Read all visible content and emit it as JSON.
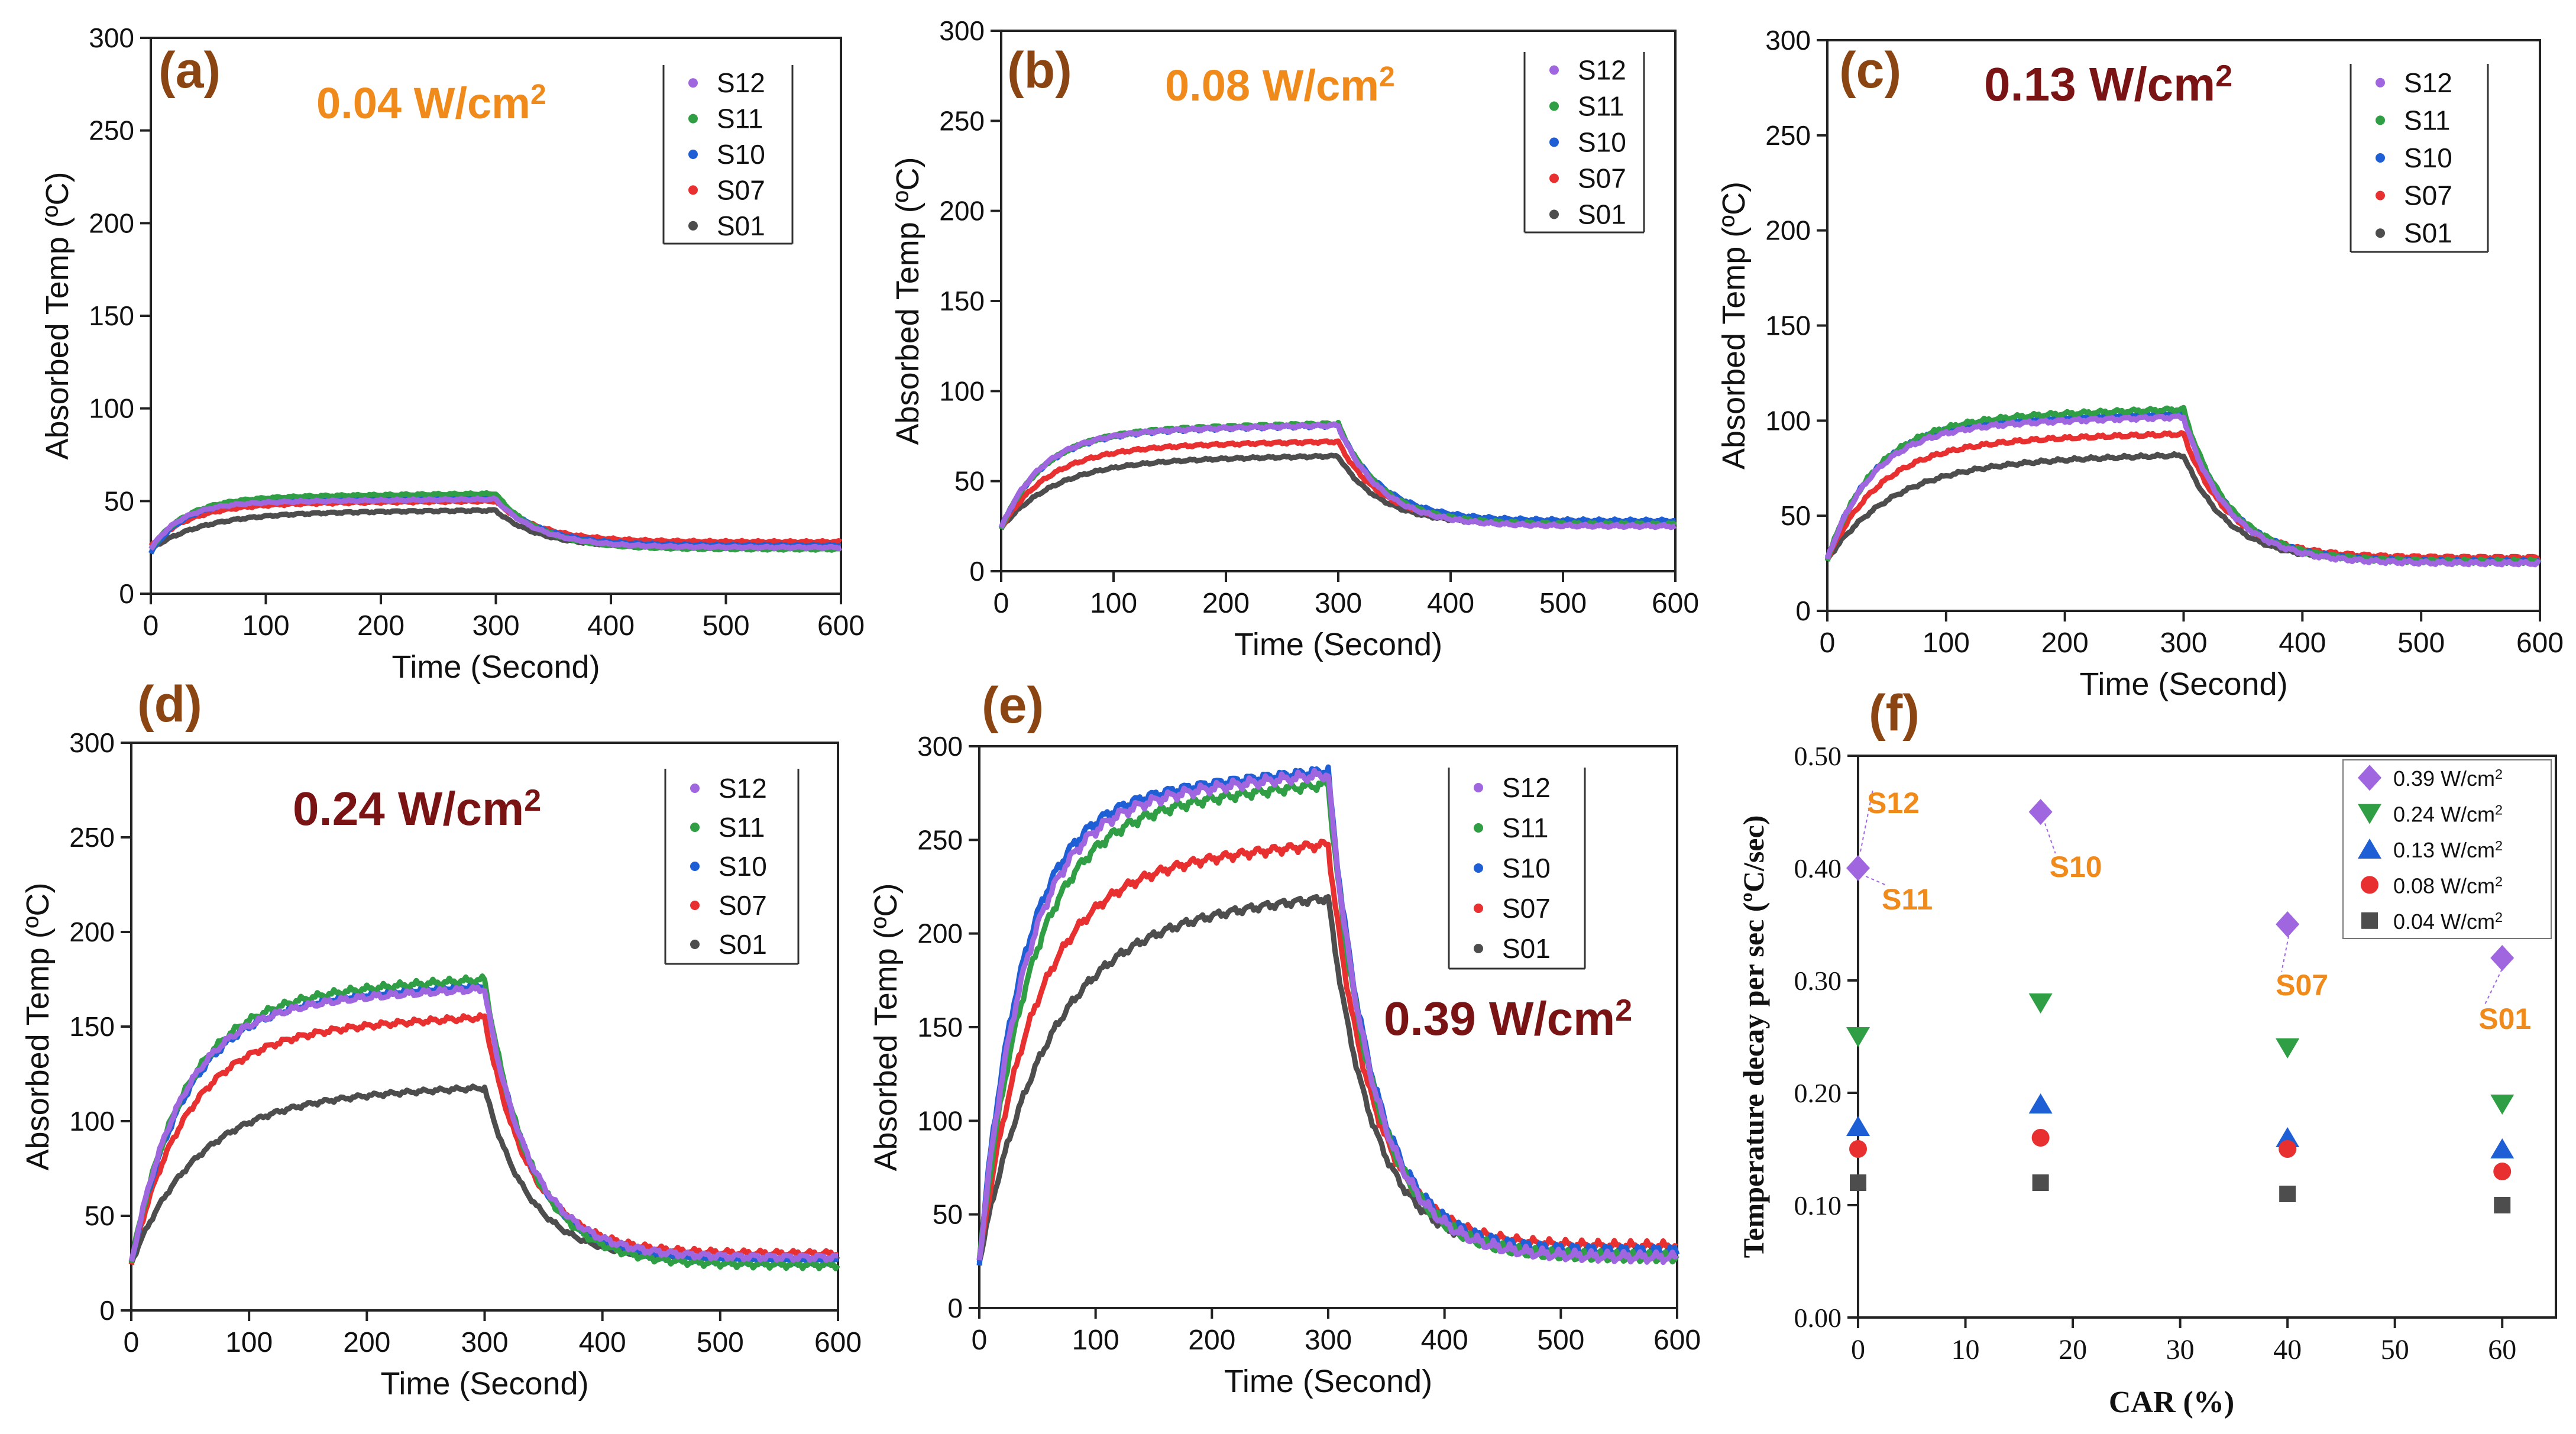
{
  "colors": {
    "S12": "#a066e0",
    "S11": "#2f9e44",
    "S10": "#1f5fd6",
    "S07": "#e83030",
    "S01": "#4d4d4d",
    "label_brown": "#8b4513",
    "orange": "#f08a1a",
    "darkred": "#7a1414",
    "axis": "#222222"
  },
  "chart_data": [
    {
      "id": "a",
      "type": "line",
      "panel_label": "(a)",
      "title": "0.04 W/cm²",
      "title_color": "orange",
      "xlabel": "Time (Second)",
      "ylabel": "Absorbed Temp (ºC)",
      "xlim": [
        0,
        600
      ],
      "ylim": [
        0,
        300
      ],
      "xticks": [
        "0",
        "100",
        "200",
        "300",
        "400",
        "500",
        "600"
      ],
      "yticks": [
        "0",
        "50",
        "100",
        "150",
        "200",
        "250",
        "300"
      ],
      "legend": [
        "S12",
        "S11",
        "S10",
        "S07",
        "S01"
      ],
      "series": [
        {
          "name": "S12",
          "start": 24,
          "plateau": 51,
          "end": 25,
          "tau": 26
        },
        {
          "name": "S11",
          "start": 24,
          "plateau": 54,
          "end": 24,
          "tau": 30
        },
        {
          "name": "S10",
          "start": 22,
          "plateau": 52,
          "end": 26,
          "tau": 28
        },
        {
          "name": "S07",
          "start": 26,
          "plateau": 50,
          "end": 28,
          "tau": 34
        },
        {
          "name": "S01",
          "start": 24,
          "plateau": 45,
          "end": 25,
          "tau": 45
        }
      ]
    },
    {
      "id": "b",
      "type": "line",
      "panel_label": "(b)",
      "title": "0.08 W/cm²",
      "title_color": "orange",
      "xlabel": "Time (Second)",
      "ylabel": "Absorbed Temp (ºC)",
      "xlim": [
        0,
        600
      ],
      "ylim": [
        0,
        300
      ],
      "xticks": [
        "0",
        "100",
        "200",
        "300",
        "400",
        "500",
        "600"
      ],
      "yticks": [
        "0",
        "50",
        "100",
        "150",
        "200",
        "250",
        "300"
      ],
      "legend": [
        "S12",
        "S11",
        "S10",
        "S07",
        "S01"
      ],
      "series": [
        {
          "name": "S12",
          "start": 24,
          "plateau": 81,
          "end": 25,
          "tau": 36
        },
        {
          "name": "S11",
          "start": 24,
          "plateau": 82,
          "end": 26,
          "tau": 38
        },
        {
          "name": "S10",
          "start": 24,
          "plateau": 81,
          "end": 28,
          "tau": 37
        },
        {
          "name": "S07",
          "start": 24,
          "plateau": 72,
          "end": 27,
          "tau": 42
        },
        {
          "name": "S01",
          "start": 24,
          "plateau": 64,
          "end": 26,
          "tau": 48
        }
      ]
    },
    {
      "id": "c",
      "type": "line",
      "panel_label": "(c)",
      "title": "0.13 W/cm²",
      "title_color": "darkred",
      "xlabel": "Time (Second)",
      "ylabel": "Absorbed Temp (ºC)",
      "xlim": [
        0,
        600
      ],
      "ylim": [
        0,
        300
      ],
      "xticks": [
        "0",
        "100",
        "200",
        "300",
        "400",
        "500",
        "600"
      ],
      "yticks": [
        "0",
        "50",
        "100",
        "150",
        "200",
        "250",
        "300"
      ],
      "legend": [
        "S12",
        "S11",
        "S10",
        "S07",
        "S01"
      ],
      "series": [
        {
          "name": "S12",
          "start": 27,
          "plateau": 102,
          "end": 25,
          "tau": 38
        },
        {
          "name": "S11",
          "start": 27,
          "plateau": 106,
          "end": 26,
          "tau": 40
        },
        {
          "name": "S10",
          "start": 27,
          "plateau": 104,
          "end": 26,
          "tau": 39
        },
        {
          "name": "S07",
          "start": 27,
          "plateau": 93,
          "end": 28,
          "tau": 44
        },
        {
          "name": "S01",
          "start": 27,
          "plateau": 82,
          "end": 26,
          "tau": 55
        }
      ]
    },
    {
      "id": "d",
      "type": "line",
      "panel_label": "(d)",
      "title": "0.24 W/cm²",
      "title_color": "darkred",
      "xlabel": "Time (Second)",
      "ylabel": "Absorbed Temp (ºC)",
      "xlim": [
        0,
        600
      ],
      "ylim": [
        0,
        300
      ],
      "xticks": [
        "0",
        "100",
        "200",
        "300",
        "400",
        "500",
        "600"
      ],
      "yticks": [
        "0",
        "50",
        "100",
        "150",
        "200",
        "250",
        "300"
      ],
      "legend": [
        "S12",
        "S11",
        "S10",
        "S07",
        "S01"
      ],
      "series": [
        {
          "name": "S12",
          "start": 25,
          "plateau": 170,
          "end": 28,
          "tau": 42
        },
        {
          "name": "S11",
          "start": 25,
          "plateau": 175,
          "end": 24,
          "tau": 44
        },
        {
          "name": "S10",
          "start": 25,
          "plateau": 172,
          "end": 26,
          "tau": 45
        },
        {
          "name": "S07",
          "start": 25,
          "plateau": 155,
          "end": 30,
          "tau": 46
        },
        {
          "name": "S01",
          "start": 25,
          "plateau": 118,
          "end": 27,
          "tau": 55
        }
      ]
    },
    {
      "id": "e",
      "type": "line",
      "panel_label": "(e)",
      "title": "0.39 W/cm²",
      "title_color": "darkred",
      "xlabel": "Time (Second)",
      "ylabel": "Absorbed Temp (ºC)",
      "xlim": [
        0,
        600
      ],
      "ylim": [
        0,
        300
      ],
      "xticks": [
        "0",
        "100",
        "200",
        "300",
        "400",
        "500",
        "600"
      ],
      "yticks": [
        "0",
        "50",
        "100",
        "150",
        "200",
        "250",
        "300"
      ],
      "legend": [
        "S12",
        "S11",
        "S10",
        "S07",
        "S01"
      ],
      "series": [
        {
          "name": "S12",
          "start": 25,
          "plateau": 285,
          "end": 27,
          "tau": 38
        },
        {
          "name": "S11",
          "start": 25,
          "plateau": 280,
          "end": 27,
          "tau": 42
        },
        {
          "name": "S10",
          "start": 25,
          "plateau": 287,
          "end": 30,
          "tau": 36
        },
        {
          "name": "S07",
          "start": 25,
          "plateau": 248,
          "end": 33,
          "tau": 46
        },
        {
          "name": "S01",
          "start": 25,
          "plateau": 220,
          "end": 30,
          "tau": 58
        }
      ]
    },
    {
      "id": "f",
      "type": "scatter",
      "panel_label": "(f)",
      "xlabel": "CAR (%)",
      "ylabel": "Temperature decay per sec (ºC/sec)",
      "xlim": [
        0,
        65
      ],
      "ylim": [
        0,
        0.5
      ],
      "xticks": [
        "0",
        "10",
        "20",
        "30",
        "40",
        "50",
        "60"
      ],
      "yticks": [
        "0.00",
        "0.10",
        "0.20",
        "0.30",
        "0.40",
        "0.50"
      ],
      "series": [
        {
          "name": "0.39 W/cm²",
          "marker": "diamond",
          "color": "S12",
          "x": [
            0,
            17,
            40,
            60
          ],
          "y": [
            0.4,
            0.45,
            0.35,
            0.32
          ]
        },
        {
          "name": "0.24 W/cm²",
          "marker": "triangle-down",
          "color": "S11",
          "x": [
            0,
            17,
            40,
            60
          ],
          "y": [
            0.25,
            0.28,
            0.24,
            0.19
          ]
        },
        {
          "name": "0.13 W/cm²",
          "marker": "triangle-up",
          "color": "S10",
          "x": [
            0,
            17,
            40,
            60
          ],
          "y": [
            0.17,
            0.19,
            0.16,
            0.15
          ]
        },
        {
          "name": "0.08 W/cm²",
          "marker": "circle",
          "color": "S07",
          "x": [
            0,
            17,
            40,
            60
          ],
          "y": [
            0.15,
            0.16,
            0.15,
            0.13
          ]
        },
        {
          "name": "0.04 W/cm²",
          "marker": "square",
          "color": "S01",
          "x": [
            0,
            17,
            40,
            60
          ],
          "y": [
            0.12,
            0.12,
            0.11,
            0.1
          ]
        }
      ],
      "annotations": [
        {
          "text": "S12",
          "x": 0,
          "y": 0.42
        },
        {
          "text": "S11",
          "x": 0,
          "y": 0.4
        },
        {
          "text": "S10",
          "x": 17,
          "y": 0.45
        },
        {
          "text": "S07",
          "x": 40,
          "y": 0.35
        },
        {
          "text": "S01",
          "x": 60,
          "y": 0.32
        }
      ]
    }
  ]
}
